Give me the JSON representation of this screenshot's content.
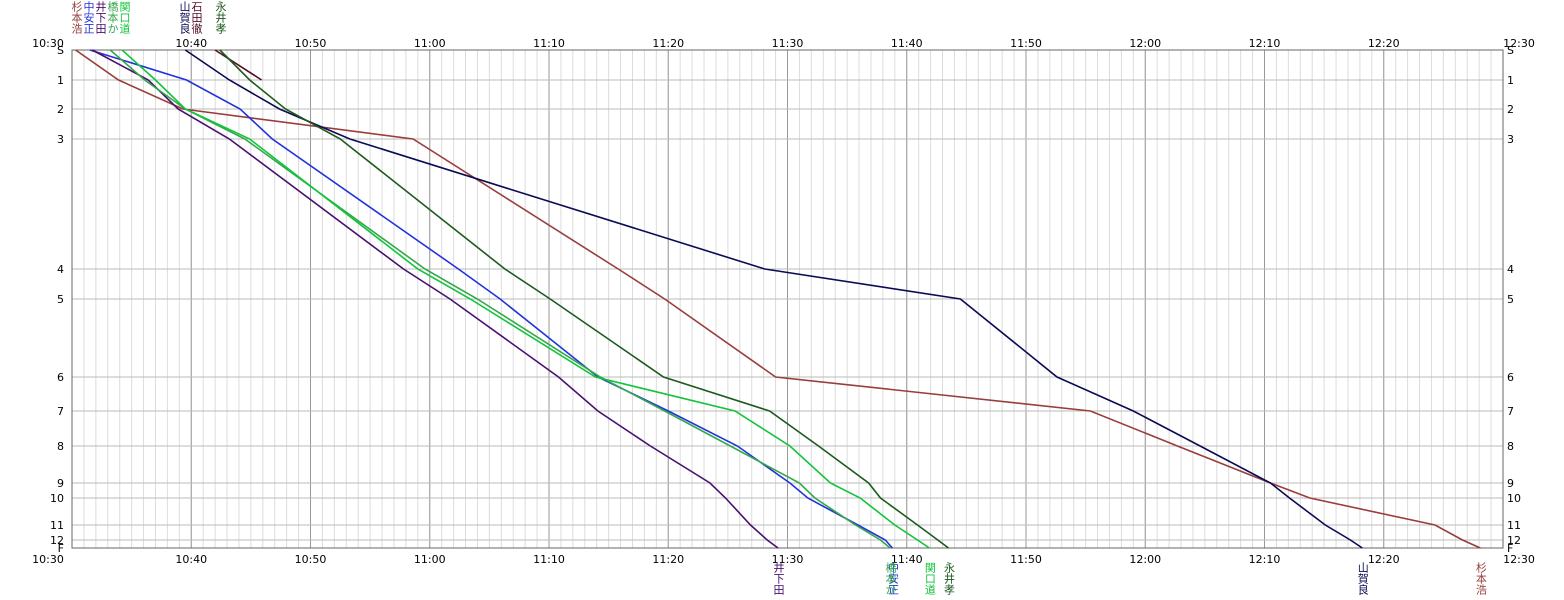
{
  "chart_data": {
    "type": "line",
    "categories": [
      "S",
      "1",
      "2",
      "3",
      "4",
      "5",
      "6",
      "7",
      "8",
      "9",
      "10",
      "11",
      "12",
      "F"
    ],
    "xlim": [
      630,
      750
    ],
    "xticks": [
      {
        "value": 630,
        "label": "10:30"
      },
      {
        "value": 640,
        "label": "10:40"
      },
      {
        "value": 650,
        "label": "10:50"
      },
      {
        "value": 660,
        "label": "11:00"
      },
      {
        "value": 670,
        "label": "11:10"
      },
      {
        "value": 680,
        "label": "11:20"
      },
      {
        "value": 690,
        "label": "11:30"
      },
      {
        "value": 700,
        "label": "11:40"
      },
      {
        "value": 710,
        "label": "11:50"
      },
      {
        "value": 720,
        "label": "12:00"
      },
      {
        "value": 730,
        "label": "12:10"
      },
      {
        "value": 740,
        "label": "12:20"
      },
      {
        "value": 750,
        "label": "12:30"
      }
    ],
    "grid": true,
    "series": [
      {
        "name": "杉本浩",
        "color": "#993d3d",
        "values": [
          630.3,
          633.9,
          639.3,
          658.6,
          675.8,
          679.7,
          689.0,
          715.4,
          722.7,
          730.5,
          733.8,
          744.3,
          746.6,
          748.1
        ]
      },
      {
        "name": "中安正",
        "color": "#2233dd",
        "values": [
          631.5,
          639.6,
          644.1,
          646.8,
          662.4,
          665.9,
          674.1,
          680.0,
          685.8,
          690.2,
          691.7,
          695.9,
          698.2,
          698.8
        ]
      },
      {
        "name": "井下田",
        "color": "#4a1070",
        "values": [
          631.7,
          636.4,
          638.9,
          643.2,
          657.8,
          661.7,
          670.8,
          674.1,
          678.5,
          683.5,
          684.8,
          686.9,
          688.3,
          689.2
        ]
      },
      {
        "name": "橋本か",
        "color": "#33a84a",
        "values": [
          633.2,
          636.1,
          639.5,
          644.5,
          659.6,
          664.0,
          674.3,
          679.7,
          685.2,
          691.0,
          692.3,
          695.7,
          697.8,
          698.6
        ]
      },
      {
        "name": "関口道",
        "color": "#11c43a",
        "values": [
          634.2,
          637.0,
          639.5,
          644.9,
          659.0,
          663.4,
          673.9,
          685.6,
          690.2,
          693.6,
          696.1,
          699.0,
          700.9,
          701.9
        ]
      },
      {
        "name": "山賀良",
        "color": "#0a0a55",
        "values": [
          639.5,
          643.2,
          647.4,
          653.3,
          688.1,
          704.5,
          712.6,
          719.0,
          724.6,
          730.5,
          732.1,
          735.1,
          737.2,
          738.2
        ]
      },
      {
        "name": "石田徹",
        "color": "#551028",
        "values": [
          642.0,
          645.9,
          null,
          null,
          null,
          null,
          null,
          null,
          null,
          null,
          null,
          null,
          null,
          null
        ]
      },
      {
        "name": "永井孝",
        "color": "#1d5a1d",
        "values": [
          642.4,
          644.9,
          647.9,
          652.5,
          666.3,
          670.1,
          679.6,
          688.5,
          692.6,
          696.8,
          697.8,
          700.9,
          702.6,
          703.5
        ]
      }
    ]
  }
}
